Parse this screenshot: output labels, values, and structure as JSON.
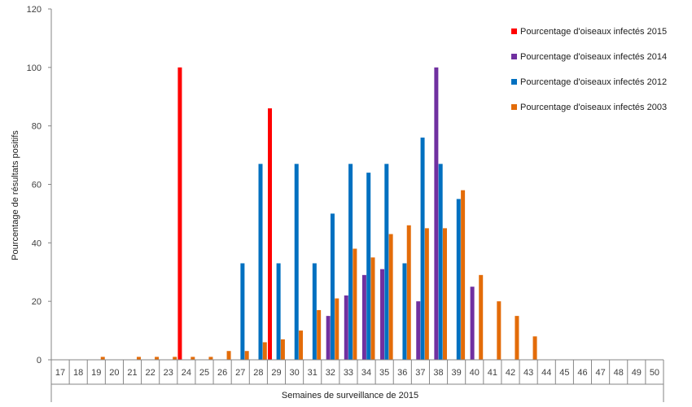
{
  "chart_data": {
    "type": "bar",
    "title": "",
    "xlabel": "Semaines de surveillance de 2015",
    "ylabel": "Pourcentage de résultats positifs",
    "ylim": [
      0,
      120
    ],
    "yticks": [
      0,
      20,
      40,
      60,
      80,
      100,
      120
    ],
    "grid": false,
    "legend_position": "top-right",
    "categories": [
      "17",
      "18",
      "19",
      "20",
      "21",
      "22",
      "23",
      "24",
      "25",
      "26",
      "27",
      "28",
      "29",
      "30",
      "31",
      "32",
      "33",
      "34",
      "35",
      "36",
      "37",
      "38",
      "39",
      "40",
      "41",
      "42",
      "43",
      "44",
      "45",
      "46",
      "47",
      "48",
      "49",
      "50"
    ],
    "series": [
      {
        "name": "Pourcentage d'oiseaux infectés 2015",
        "color": "#FF0000",
        "values": [
          0,
          0,
          0,
          0,
          0,
          0,
          0,
          100,
          0,
          0,
          0,
          0,
          86,
          0,
          0,
          0,
          0,
          0,
          0,
          0,
          0,
          0,
          0,
          0,
          0,
          0,
          0,
          0,
          0,
          0,
          0,
          0,
          0,
          0
        ]
      },
      {
        "name": "Pourcentage d'oiseaux infectés 2014",
        "color": "#7030A0",
        "values": [
          0,
          0,
          0,
          0,
          0,
          0,
          0,
          0,
          0,
          0,
          0,
          0,
          0,
          0,
          0,
          15,
          22,
          29,
          31,
          0,
          20,
          100,
          0,
          25,
          0,
          0,
          0,
          0,
          0,
          0,
          0,
          0,
          0,
          0
        ]
      },
      {
        "name": "Pourcentage d'oiseaux infectés 2012",
        "color": "#0070C0",
        "values": [
          0,
          0,
          0,
          0,
          0,
          0,
          0,
          0,
          0,
          0,
          33,
          67,
          33,
          67,
          33,
          50,
          67,
          64,
          67,
          33,
          76,
          67,
          55,
          0,
          0,
          0,
          0,
          0,
          0,
          0,
          0,
          0,
          0,
          0
        ]
      },
      {
        "name": "Pourcentage d'oiseaux infectés 2003",
        "color": "#E36C09",
        "values": [
          0,
          0,
          1,
          0,
          1,
          1,
          1,
          1,
          1,
          3,
          3,
          6,
          7,
          10,
          17,
          21,
          38,
          35,
          43,
          46,
          45,
          45,
          58,
          29,
          20,
          15,
          8,
          0,
          0,
          0,
          0,
          0,
          0,
          0
        ]
      }
    ]
  }
}
